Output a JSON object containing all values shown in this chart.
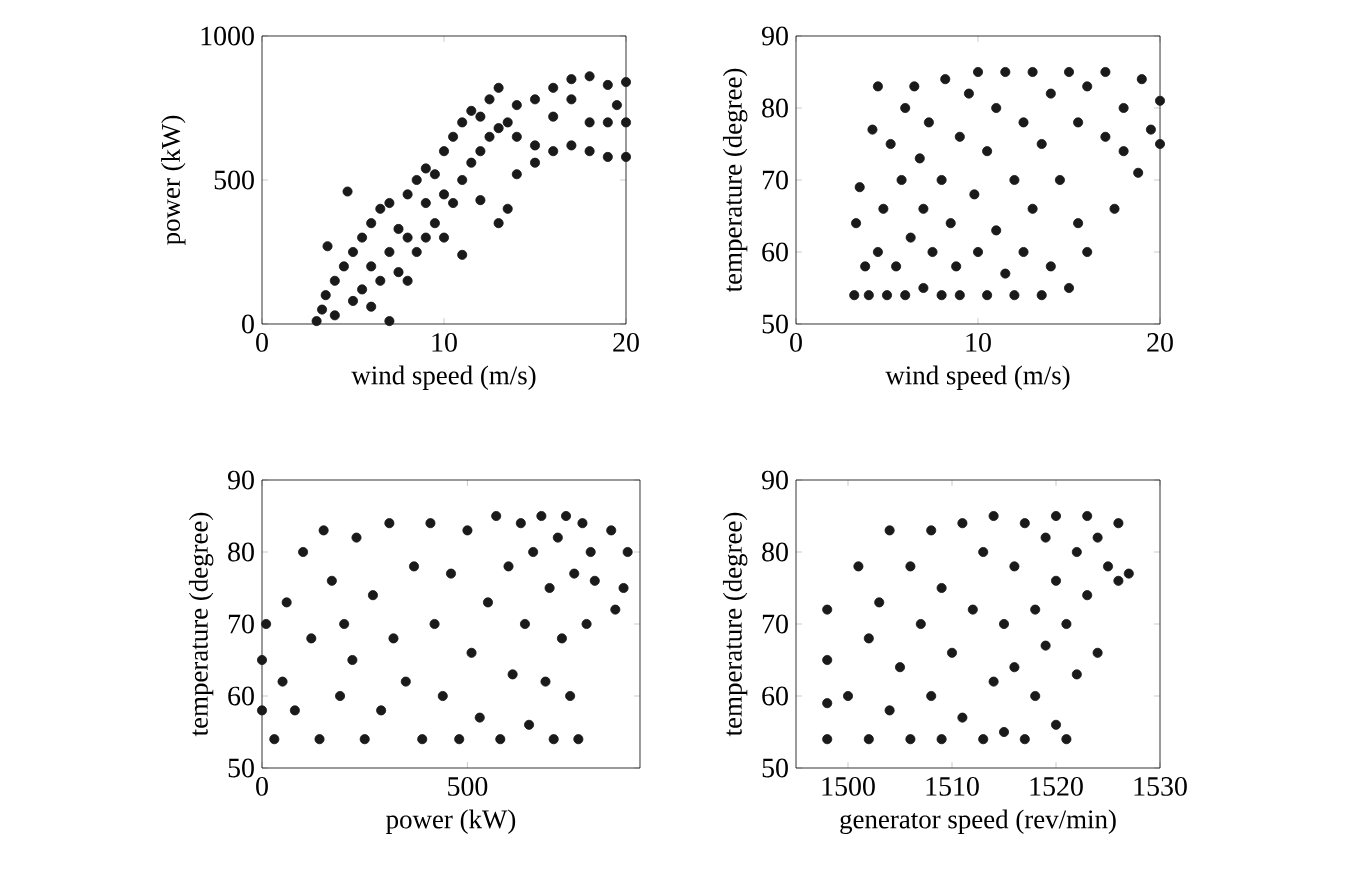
{
  "chart_data": [
    {
      "type": "scatter",
      "xlabel": "wind speed (m/s)",
      "ylabel": "power (kW)",
      "xlim": [
        0,
        20
      ],
      "ylim": [
        0,
        1000
      ],
      "xticks": [
        0,
        10,
        20
      ],
      "yticks": [
        0,
        500,
        1000
      ],
      "marker": "circle",
      "grid": false,
      "series": [
        {
          "color": "#1a1a1a",
          "x": [
            3,
            3.3,
            3.5,
            3.6,
            4,
            4,
            4.5,
            4.7,
            5,
            5,
            5.5,
            5.5,
            6,
            6,
            6,
            6.5,
            6.5,
            7,
            7,
            7,
            7.5,
            7.5,
            8,
            8,
            8,
            8.5,
            8.5,
            9,
            9,
            9,
            9.5,
            9.5,
            10,
            10,
            10,
            10.5,
            10.5,
            11,
            11,
            11,
            11.5,
            11.5,
            12,
            12,
            12,
            12.5,
            12.5,
            13,
            13,
            13,
            13.5,
            13.5,
            14,
            14,
            14,
            15,
            15,
            15,
            16,
            16,
            16,
            17,
            17,
            17,
            18,
            18,
            18,
            19,
            19,
            19,
            19.5,
            20,
            20,
            20
          ],
          "values": [
            10,
            50,
            100,
            270,
            30,
            150,
            200,
            460,
            80,
            250,
            120,
            300,
            60,
            200,
            350,
            150,
            400,
            10,
            250,
            420,
            180,
            330,
            150,
            300,
            450,
            250,
            500,
            300,
            420,
            540,
            350,
            520,
            300,
            450,
            600,
            420,
            650,
            500,
            700,
            240,
            560,
            740,
            600,
            720,
            430,
            650,
            780,
            680,
            820,
            350,
            700,
            400,
            650,
            760,
            520,
            620,
            780,
            560,
            600,
            720,
            820,
            620,
            780,
            850,
            600,
            700,
            860,
            580,
            700,
            830,
            760,
            580,
            700,
            840
          ]
        }
      ]
    },
    {
      "type": "scatter",
      "xlabel": "wind speed (m/s)",
      "ylabel": "temperature (degree)",
      "xlim": [
        0,
        20
      ],
      "ylim": [
        50,
        90
      ],
      "xticks": [
        0,
        10,
        20
      ],
      "yticks": [
        50,
        60,
        70,
        80,
        90
      ],
      "marker": "circle",
      "grid": false,
      "series": [
        {
          "color": "#1a1a1a",
          "x": [
            3.2,
            3.3,
            3.5,
            3.8,
            4,
            4.2,
            4.5,
            4.5,
            4.8,
            5,
            5.2,
            5.5,
            5.8,
            6,
            6,
            6.3,
            6.5,
            6.8,
            7,
            7,
            7.3,
            7.5,
            8,
            8,
            8.2,
            8.5,
            8.8,
            9,
            9,
            9.5,
            9.8,
            10,
            10,
            10.5,
            10.5,
            11,
            11,
            11.5,
            11.5,
            12,
            12,
            12.5,
            12.5,
            13,
            13,
            13.5,
            13.5,
            14,
            14,
            14.5,
            15,
            15,
            15.5,
            15.5,
            16,
            16,
            17,
            17,
            17.5,
            18,
            18,
            18.8,
            19,
            19.5,
            20,
            20
          ],
          "values": [
            54,
            64,
            69,
            58,
            54,
            77,
            83,
            60,
            66,
            54,
            75,
            58,
            70,
            80,
            54,
            62,
            83,
            73,
            55,
            66,
            78,
            60,
            54,
            70,
            84,
            64,
            58,
            76,
            54,
            82,
            68,
            60,
            85,
            54,
            74,
            80,
            63,
            57,
            85,
            70,
            54,
            78,
            60,
            85,
            66,
            54,
            75,
            82,
            58,
            70,
            85,
            55,
            64,
            78,
            83,
            60,
            76,
            85,
            66,
            80,
            74,
            71,
            84,
            77,
            81,
            75
          ]
        }
      ]
    },
    {
      "type": "scatter",
      "xlabel": "power (kW)",
      "ylabel": "temperature (degree)",
      "xlim": [
        0,
        920
      ],
      "ylim": [
        50,
        90
      ],
      "xticks": [
        0,
        500
      ],
      "yticks": [
        50,
        60,
        70,
        80,
        90
      ],
      "marker": "circle",
      "grid": false,
      "series": [
        {
          "color": "#1a1a1a",
          "x": [
            0,
            0,
            10,
            30,
            50,
            60,
            80,
            100,
            120,
            140,
            150,
            170,
            190,
            200,
            220,
            230,
            250,
            270,
            290,
            310,
            320,
            350,
            370,
            390,
            410,
            420,
            440,
            460,
            480,
            500,
            510,
            530,
            550,
            570,
            580,
            600,
            610,
            630,
            640,
            650,
            660,
            680,
            690,
            700,
            710,
            720,
            730,
            740,
            750,
            760,
            770,
            780,
            790,
            800,
            810,
            850,
            880,
            890,
            860
          ],
          "values": [
            65,
            58,
            70,
            54,
            62,
            73,
            58,
            80,
            68,
            54,
            83,
            76,
            60,
            70,
            65,
            82,
            54,
            74,
            58,
            84,
            68,
            62,
            78,
            54,
            84,
            70,
            60,
            77,
            54,
            83,
            66,
            57,
            73,
            85,
            54,
            78,
            63,
            84,
            70,
            56,
            80,
            85,
            62,
            75,
            54,
            82,
            68,
            85,
            60,
            77,
            54,
            84,
            70,
            80,
            76,
            83,
            75,
            80,
            72
          ]
        }
      ]
    },
    {
      "type": "scatter",
      "xlabel": "generator speed (rev/min)",
      "ylabel": "temperature (degree)",
      "xlim": [
        1495,
        1530
      ],
      "ylim": [
        50,
        90
      ],
      "xticks": [
        1500,
        1510,
        1520,
        1530
      ],
      "yticks": [
        50,
        60,
        70,
        80,
        90
      ],
      "marker": "circle",
      "grid": false,
      "series": [
        {
          "color": "#1a1a1a",
          "x": [
            1498,
            1498,
            1498,
            1498,
            1500,
            1501,
            1502,
            1502,
            1503,
            1504,
            1504,
            1505,
            1506,
            1506,
            1507,
            1508,
            1508,
            1509,
            1509,
            1510,
            1511,
            1511,
            1512,
            1513,
            1513,
            1514,
            1514,
            1515,
            1515,
            1516,
            1516,
            1517,
            1517,
            1518,
            1518,
            1519,
            1519,
            1520,
            1520,
            1520,
            1521,
            1521,
            1522,
            1522,
            1523,
            1523,
            1524,
            1524,
            1525,
            1526,
            1526,
            1527
          ],
          "values": [
            54,
            59,
            65,
            72,
            60,
            78,
            54,
            68,
            73,
            83,
            58,
            64,
            78,
            54,
            70,
            83,
            60,
            54,
            75,
            66,
            84,
            57,
            72,
            80,
            54,
            62,
            85,
            70,
            55,
            78,
            64,
            84,
            54,
            72,
            60,
            82,
            67,
            85,
            56,
            76,
            54,
            70,
            80,
            63,
            85,
            74,
            66,
            82,
            78,
            84,
            76,
            77
          ]
        }
      ]
    }
  ]
}
